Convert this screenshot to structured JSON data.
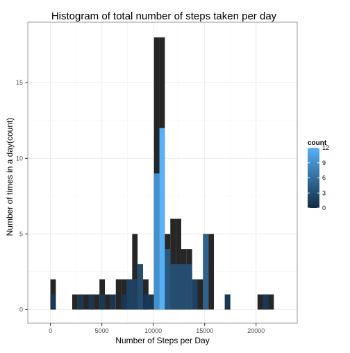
{
  "chart_data": [
    {
      "type": "bar",
      "title": "Histogram of total number of steps taken per day",
      "xlabel": "Number of Steps per Day",
      "ylabel": "Number of times in a day(count)",
      "xlim": [
        -2200,
        24000
      ],
      "ylim": [
        -0.9,
        19
      ],
      "x_ticks": [
        0,
        5000,
        10000,
        15000,
        20000
      ],
      "y_ticks": [
        0,
        5,
        10,
        15
      ],
      "grid": true,
      "panel_border_color": "#7f7f7f",
      "bin_width": 530,
      "colors": {
        "fill_a": "#262626",
        "low": "#132B43",
        "high": "#56B1F7"
      },
      "legend": {
        "title": "count",
        "placement": "right",
        "ticks": [
          0,
          3,
          6,
          9,
          12
        ],
        "range": [
          0,
          12
        ]
      },
      "series": [
        {
          "bins": [
            {
              "x": 265,
              "y": 2
            },
            {
              "x": 2385,
              "y": 1
            },
            {
              "x": 2915,
              "y": 1
            },
            {
              "x": 3445,
              "y": 1
            },
            {
              "x": 3975,
              "y": 1
            },
            {
              "x": 4505,
              "y": 1
            },
            {
              "x": 5035,
              "y": 2
            },
            {
              "x": 5565,
              "y": 1
            },
            {
              "x": 6625,
              "y": 2
            },
            {
              "x": 7155,
              "y": 2
            },
            {
              "x": 7685,
              "y": 2
            },
            {
              "x": 8215,
              "y": 5
            },
            {
              "x": 8745,
              "y": 2
            },
            {
              "x": 9275,
              "y": 2
            },
            {
              "x": 10335,
              "y": 18
            },
            {
              "x": 10865,
              "y": 18
            },
            {
              "x": 11395,
              "y": 5
            },
            {
              "x": 11925,
              "y": 6
            },
            {
              "x": 12455,
              "y": 6
            },
            {
              "x": 12985,
              "y": 4
            },
            {
              "x": 13515,
              "y": 4
            },
            {
              "x": 14575,
              "y": 2
            },
            {
              "x": 15105,
              "y": 5
            },
            {
              "x": 15635,
              "y": 5
            },
            {
              "x": 17225,
              "y": 1
            },
            {
              "x": 20405,
              "y": 1
            },
            {
              "x": 20935,
              "y": 1
            },
            {
              "x": 21465,
              "y": 1
            }
          ]
        },
        {
          "bins": [
            {
              "x": 265,
              "y": 1
            },
            {
              "x": 2915,
              "y": 1
            },
            {
              "x": 3975,
              "y": 1
            },
            {
              "x": 5035,
              "y": 1
            },
            {
              "x": 6095,
              "y": 1
            },
            {
              "x": 7155,
              "y": 1
            },
            {
              "x": 7685,
              "y": 2
            },
            {
              "x": 8215,
              "y": 2
            },
            {
              "x": 8745,
              "y": 3
            },
            {
              "x": 9275,
              "y": 1
            },
            {
              "x": 9805,
              "y": 1
            },
            {
              "x": 10335,
              "y": 9
            },
            {
              "x": 10865,
              "y": 12
            },
            {
              "x": 11395,
              "y": 4
            },
            {
              "x": 11925,
              "y": 3
            },
            {
              "x": 12455,
              "y": 3
            },
            {
              "x": 12985,
              "y": 3
            },
            {
              "x": 13515,
              "y": 3
            },
            {
              "x": 14045,
              "y": 2
            },
            {
              "x": 15105,
              "y": 5
            },
            {
              "x": 17225,
              "y": 1
            },
            {
              "x": 20935,
              "y": 1
            }
          ]
        }
      ]
    }
  ]
}
